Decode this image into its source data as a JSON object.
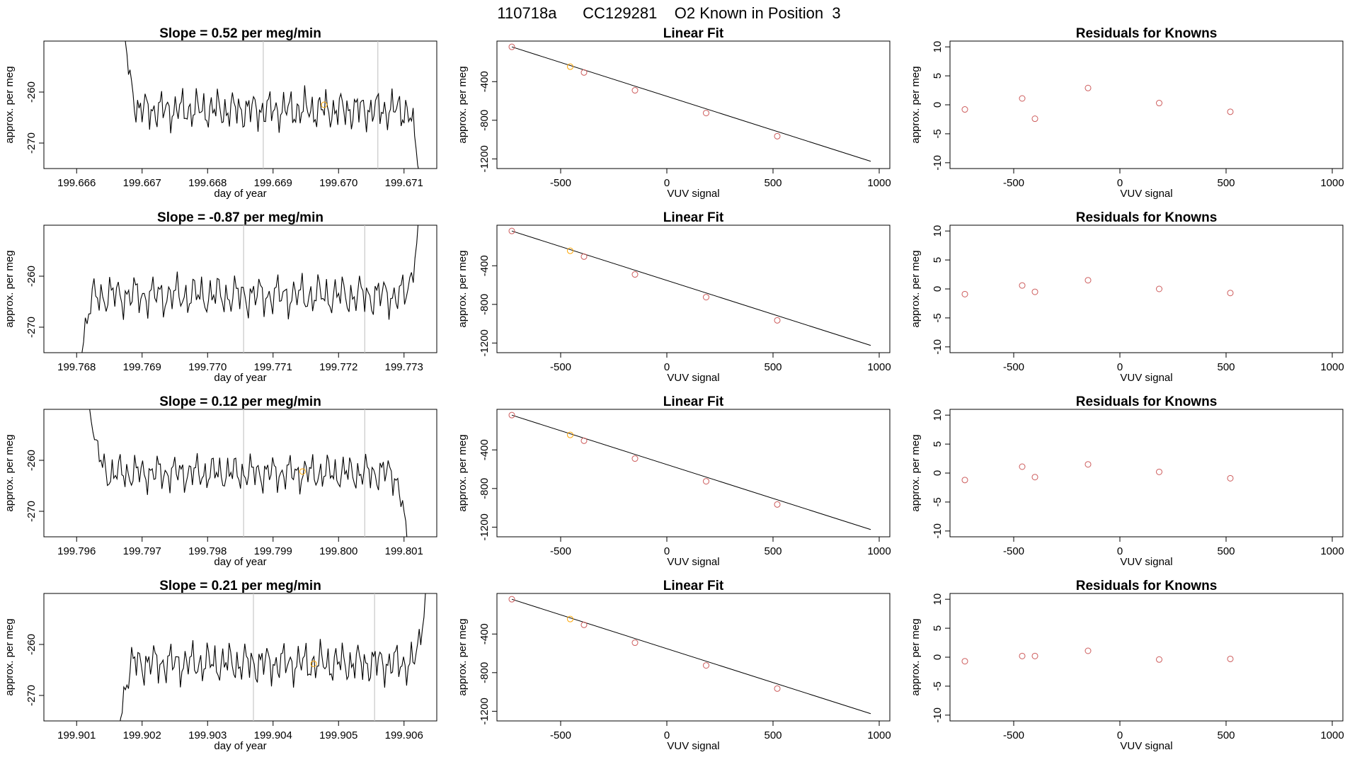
{
  "figure_title": "110718a      CC129281    O2 Known in Position  3",
  "colors": {
    "known": "#cd5c5c",
    "sample": "#ffa500",
    "trace": "#000000",
    "marker": "#c8c8c8"
  },
  "chart_data": [
    {
      "type": "line",
      "row": 0,
      "title": "Slope =  0.52  per meg/min",
      "xlabel": "day of year",
      "ylabel": "approx. per meg",
      "xlim": [
        199.6655,
        199.6715
      ],
      "ylim": [
        -275,
        -250
      ],
      "xticks": [
        "199.666",
        "199.667",
        "199.668",
        "199.669",
        "199.670",
        "199.671"
      ],
      "yticks": [
        "-270",
        "-260"
      ],
      "trace_start": 199.6667,
      "trace_end": 199.6713,
      "level": -263.5,
      "amplitude": 2.6,
      "phase": 0.0,
      "trace_head": -245,
      "trace_tail": -285,
      "vlines": [
        199.66885,
        199.6706
      ],
      "sample_point": {
        "x": 199.66978,
        "y": -262.5
      }
    },
    {
      "type": "scatter",
      "row": 0,
      "title": "Linear Fit",
      "xlabel": "VUV signal",
      "ylabel": "approx. per meg",
      "xlim": [
        -800,
        1050
      ],
      "ylim": [
        -1300,
        20
      ],
      "xticks": [
        "-500",
        "0",
        "500",
        "1000"
      ],
      "yticks": [
        "-1200",
        "-800",
        "-400"
      ],
      "fit_line": {
        "x": [
          -730,
          960
        ],
        "y": [
          -40,
          -1225
        ]
      },
      "known_points": {
        "x": [
          -730,
          -390,
          -150,
          185,
          520
        ],
        "y": [
          -40,
          -305,
          -490,
          -725,
          -965
        ]
      },
      "sample_points": {
        "x": [
          -455
        ],
        "y": [
          -245
        ]
      }
    },
    {
      "type": "scatter",
      "row": 0,
      "title": "Residuals for Knowns",
      "xlabel": "VUV signal",
      "ylabel": "approx. per meg",
      "xlim": [
        -800,
        1050
      ],
      "ylim": [
        -11,
        11
      ],
      "xticks": [
        "-500",
        "0",
        "500",
        "1000"
      ],
      "yticks": [
        "-10",
        "-5",
        "0",
        "5",
        "10"
      ],
      "known_points": {
        "x": [
          -730,
          -460,
          -400,
          -150,
          185,
          520
        ],
        "y": [
          -0.8,
          1.1,
          -2.4,
          2.9,
          0.3,
          -1.2
        ]
      }
    },
    {
      "type": "line",
      "row": 1,
      "title": "Slope =  -0.87  per meg/min",
      "xlabel": "day of year",
      "ylabel": "approx. per meg",
      "xlim": [
        199.7675,
        199.7735
      ],
      "ylim": [
        -275,
        -250
      ],
      "xticks": [
        "199.768",
        "199.769",
        "199.770",
        "199.771",
        "199.772",
        "199.773"
      ],
      "yticks": [
        "-270",
        "-260"
      ],
      "trace_start": 199.768,
      "trace_end": 199.7733,
      "level": -263.8,
      "amplitude": 2.7,
      "phase": 1.3,
      "trace_head": -282,
      "trace_tail": -240,
      "vlines": [
        199.77055,
        199.7724
      ],
      "sample_point": null
    },
    {
      "type": "scatter",
      "row": 1,
      "title": "Linear Fit",
      "xlabel": "VUV signal",
      "ylabel": "approx. per meg",
      "xlim": [
        -800,
        1050
      ],
      "ylim": [
        -1300,
        20
      ],
      "xticks": [
        "-500",
        "0",
        "500",
        "1000"
      ],
      "yticks": [
        "-1200",
        "-800",
        "-400"
      ],
      "fit_line": {
        "x": [
          -730,
          960
        ],
        "y": [
          -40,
          -1225
        ]
      },
      "known_points": {
        "x": [
          -730,
          -390,
          -150,
          185,
          520
        ],
        "y": [
          -40,
          -305,
          -490,
          -725,
          -965
        ]
      },
      "sample_points": {
        "x": [
          -455
        ],
        "y": [
          -245
        ]
      }
    },
    {
      "type": "scatter",
      "row": 1,
      "title": "Residuals for Knowns",
      "xlabel": "VUV signal",
      "ylabel": "approx. per meg",
      "xlim": [
        -800,
        1050
      ],
      "ylim": [
        -11,
        11
      ],
      "xticks": [
        "-500",
        "0",
        "500",
        "1000"
      ],
      "yticks": [
        "-10",
        "-5",
        "0",
        "5",
        "10"
      ],
      "known_points": {
        "x": [
          -730,
          -460,
          -400,
          -150,
          185,
          520
        ],
        "y": [
          -0.9,
          0.6,
          -0.5,
          1.5,
          0.0,
          -0.7
        ]
      }
    },
    {
      "type": "line",
      "row": 2,
      "title": "Slope =  0.12  per meg/min",
      "xlabel": "day of year",
      "ylabel": "approx. per meg",
      "xlim": [
        199.7955,
        199.8015
      ],
      "ylim": [
        -275,
        -250
      ],
      "xticks": [
        "199.796",
        "199.797",
        "199.798",
        "199.799",
        "199.800",
        "199.801"
      ],
      "yticks": [
        "-270",
        "-260"
      ],
      "trace_start": 199.7962,
      "trace_end": 199.8011,
      "level": -262.5,
      "amplitude": 2.4,
      "phase": 2.1,
      "trace_head": -250,
      "trace_tail": -282,
      "vlines": [
        199.79855,
        199.8004
      ],
      "sample_point": {
        "x": 199.79945,
        "y": -262.2
      }
    },
    {
      "type": "scatter",
      "row": 2,
      "title": "Linear Fit",
      "xlabel": "VUV signal",
      "ylabel": "approx. per meg",
      "xlim": [
        -800,
        1050
      ],
      "ylim": [
        -1300,
        20
      ],
      "xticks": [
        "-500",
        "0",
        "500",
        "1000"
      ],
      "yticks": [
        "-1200",
        "-800",
        "-400"
      ],
      "fit_line": {
        "x": [
          -730,
          960
        ],
        "y": [
          -40,
          -1225
        ]
      },
      "known_points": {
        "x": [
          -730,
          -390,
          -150,
          185,
          520
        ],
        "y": [
          -40,
          -305,
          -490,
          -725,
          -965
        ]
      },
      "sample_points": {
        "x": [
          -455
        ],
        "y": [
          -245
        ]
      }
    },
    {
      "type": "scatter",
      "row": 2,
      "title": "Residuals for Knowns",
      "xlabel": "VUV signal",
      "ylabel": "approx. per meg",
      "xlim": [
        -800,
        1050
      ],
      "ylim": [
        -11,
        11
      ],
      "xticks": [
        "-500",
        "0",
        "500",
        "1000"
      ],
      "yticks": [
        "-10",
        "-5",
        "0",
        "5",
        "10"
      ],
      "known_points": {
        "x": [
          -730,
          -460,
          -400,
          -150,
          185,
          520
        ],
        "y": [
          -1.2,
          1.1,
          -0.7,
          1.5,
          0.2,
          -0.9
        ]
      }
    },
    {
      "type": "line",
      "row": 3,
      "title": "Slope =  0.21  per meg/min",
      "xlabel": "day of year",
      "ylabel": "approx. per meg",
      "xlim": [
        199.9005,
        199.9065
      ],
      "ylim": [
        -275,
        -250
      ],
      "xticks": [
        "199.901",
        "199.902",
        "199.903",
        "199.904",
        "199.905",
        "199.906"
      ],
      "yticks": [
        "-270",
        "-260"
      ],
      "trace_start": 199.9016,
      "trace_end": 199.9064,
      "level": -263.7,
      "amplitude": 2.7,
      "phase": 0.7,
      "trace_head": -282,
      "trace_tail": -240,
      "vlines": [
        199.9037,
        199.90555
      ],
      "sample_point": {
        "x": 199.90462,
        "y": -263.8
      }
    },
    {
      "type": "scatter",
      "row": 3,
      "title": "Linear Fit",
      "xlabel": "VUV signal",
      "ylabel": "approx. per meg",
      "xlim": [
        -800,
        1050
      ],
      "ylim": [
        -1300,
        20
      ],
      "xticks": [
        "-500",
        "0",
        "500",
        "1000"
      ],
      "yticks": [
        "-1200",
        "-800",
        "-400"
      ],
      "fit_line": {
        "x": [
          -730,
          960
        ],
        "y": [
          -40,
          -1225
        ]
      },
      "known_points": {
        "x": [
          -730,
          -390,
          -150,
          185,
          520
        ],
        "y": [
          -40,
          -305,
          -490,
          -725,
          -965
        ]
      },
      "sample_points": {
        "x": [
          -455
        ],
        "y": [
          -245
        ]
      }
    },
    {
      "type": "scatter",
      "row": 3,
      "title": "Residuals for Knowns",
      "xlabel": "VUV signal",
      "ylabel": "approx. per meg",
      "xlim": [
        -800,
        1050
      ],
      "ylim": [
        -11,
        11
      ],
      "xticks": [
        "-500",
        "0",
        "500",
        "1000"
      ],
      "yticks": [
        "-10",
        "-5",
        "0",
        "5",
        "10"
      ],
      "known_points": {
        "x": [
          -730,
          -460,
          -400,
          -150,
          185,
          520
        ],
        "y": [
          -0.7,
          0.2,
          0.2,
          1.1,
          -0.4,
          -0.3
        ]
      }
    }
  ]
}
